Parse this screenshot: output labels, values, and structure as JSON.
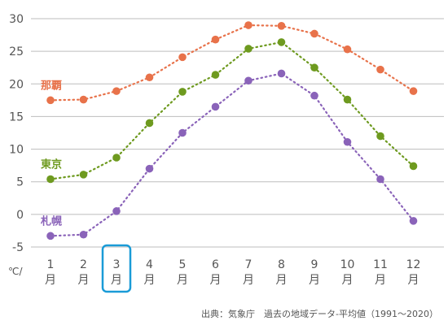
{
  "chart_data": {
    "type": "line",
    "categories": [
      "1",
      "2",
      "3",
      "4",
      "5",
      "6",
      "7",
      "8",
      "9",
      "10",
      "11",
      "12"
    ],
    "category_suffix": "月",
    "ylim": [
      -5,
      30
    ],
    "yticks": [
      -5,
      0,
      5,
      10,
      15,
      20,
      25,
      30
    ],
    "ylabel": "℃/",
    "grid": true,
    "highlighted_category": "3",
    "highlight_color": "#1a9bd7",
    "series": [
      {
        "name": "那覇",
        "color": "#e8724a",
        "values": [
          17.5,
          17.6,
          18.9,
          21.0,
          24.1,
          26.8,
          29.0,
          28.9,
          27.7,
          25.3,
          22.2,
          18.9
        ]
      },
      {
        "name": "東京",
        "color": "#6e9a1f",
        "values": [
          5.4,
          6.1,
          8.7,
          14.0,
          18.8,
          21.4,
          25.4,
          26.4,
          22.5,
          17.6,
          12.0,
          7.4
        ]
      },
      {
        "name": "札幌",
        "color": "#8a63b9",
        "values": [
          -3.3,
          -3.1,
          0.5,
          7.0,
          12.5,
          16.5,
          20.5,
          21.6,
          18.2,
          11.1,
          5.4,
          -1.0
        ]
      }
    ],
    "source": "出典：気象庁　過去の地域データ-平均値（1991〜2020）"
  }
}
